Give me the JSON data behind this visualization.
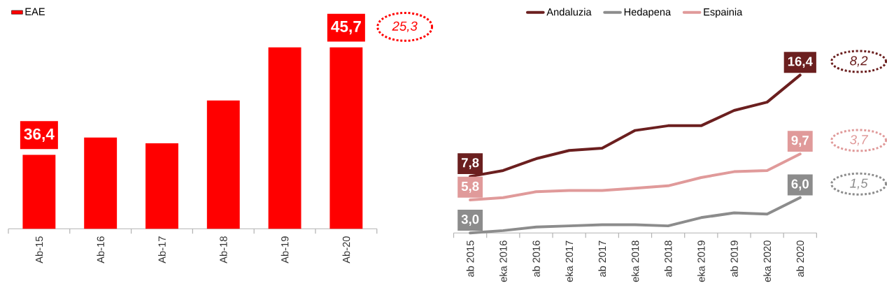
{
  "chart_data": [
    {
      "type": "bar",
      "categories": [
        "Ab-15",
        "Ab-16",
        "Ab-17",
        "Ab-18",
        "Ab-19",
        "Ab-20"
      ],
      "series": [
        {
          "name": "EAE",
          "color": "#ff0000",
          "values": [
            36.4,
            37.9,
            37.4,
            41.1,
            45.7,
            45.7
          ],
          "value_labels": [
            "36,4",
            null,
            null,
            null,
            null,
            "45,7"
          ]
        }
      ],
      "ylim": [
        30,
        45.7
      ],
      "tick_labels": "x",
      "legend": "top left",
      "annotations": [
        "25,3"
      ]
    },
    {
      "type": "line",
      "categories": [
        "ab 2015",
        "eka 2016",
        "ab 2016",
        "eka 2017",
        "ab 2017",
        "eka 2018",
        "ab 2018",
        "eka 2019",
        "ab 2019",
        "eka 2020",
        "ab 2020"
      ],
      "series": [
        {
          "name": "Andaluzia",
          "color": "#6b1f1f",
          "values": [
            7.8,
            8.3,
            9.3,
            10.0,
            10.2,
            11.7,
            12.1,
            12.1,
            13.4,
            14.1,
            16.4
          ],
          "value_labels": [
            "7,8",
            null,
            null,
            null,
            null,
            null,
            null,
            null,
            null,
            null,
            "16,4"
          ]
        },
        {
          "name": "Hedapena",
          "color": "#8c8c8c",
          "values": [
            3.0,
            3.2,
            3.5,
            3.6,
            3.7,
            3.7,
            3.6,
            4.3,
            4.7,
            4.6,
            6.0
          ],
          "value_labels": [
            "3,0",
            null,
            null,
            null,
            null,
            null,
            null,
            null,
            null,
            null,
            "6,0"
          ]
        },
        {
          "name": "Espainia",
          "color": "#e09a9a",
          "values": [
            5.8,
            6.0,
            6.5,
            6.6,
            6.6,
            6.8,
            7.0,
            7.7,
            8.2,
            8.3,
            9.7
          ],
          "value_labels": [
            "5,8",
            null,
            null,
            null,
            null,
            null,
            null,
            null,
            null,
            null,
            "9,7"
          ]
        }
      ],
      "tick_labels": "x",
      "legend": "top",
      "annotations": [
        "8,2",
        "3,7",
        "1,5"
      ]
    }
  ]
}
